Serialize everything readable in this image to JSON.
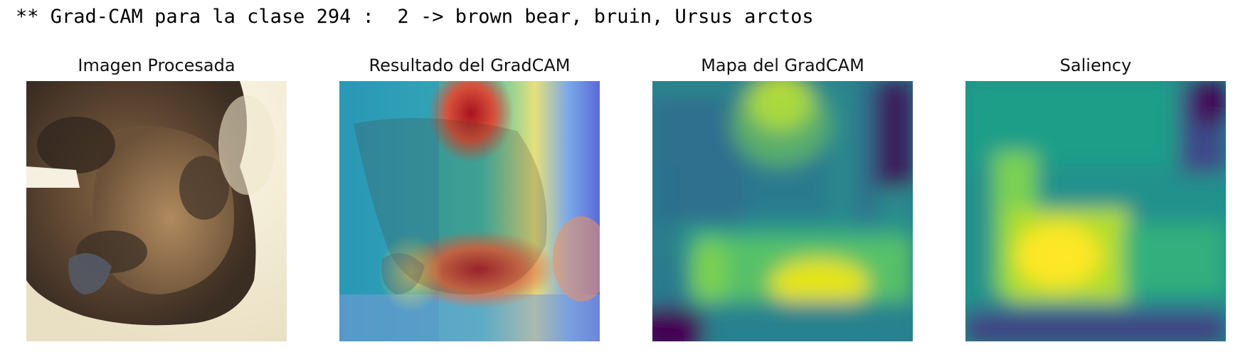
{
  "header": {
    "text": "** Grad-CAM para la clase 294 :  2 -> brown bear, bruin, Ursus arctos"
  },
  "panels": [
    {
      "title": "Imagen Procesada"
    },
    {
      "title": "Resultado del GradCAM"
    },
    {
      "title": "Mapa del GradCAM"
    },
    {
      "title": "Saliency"
    }
  ]
}
